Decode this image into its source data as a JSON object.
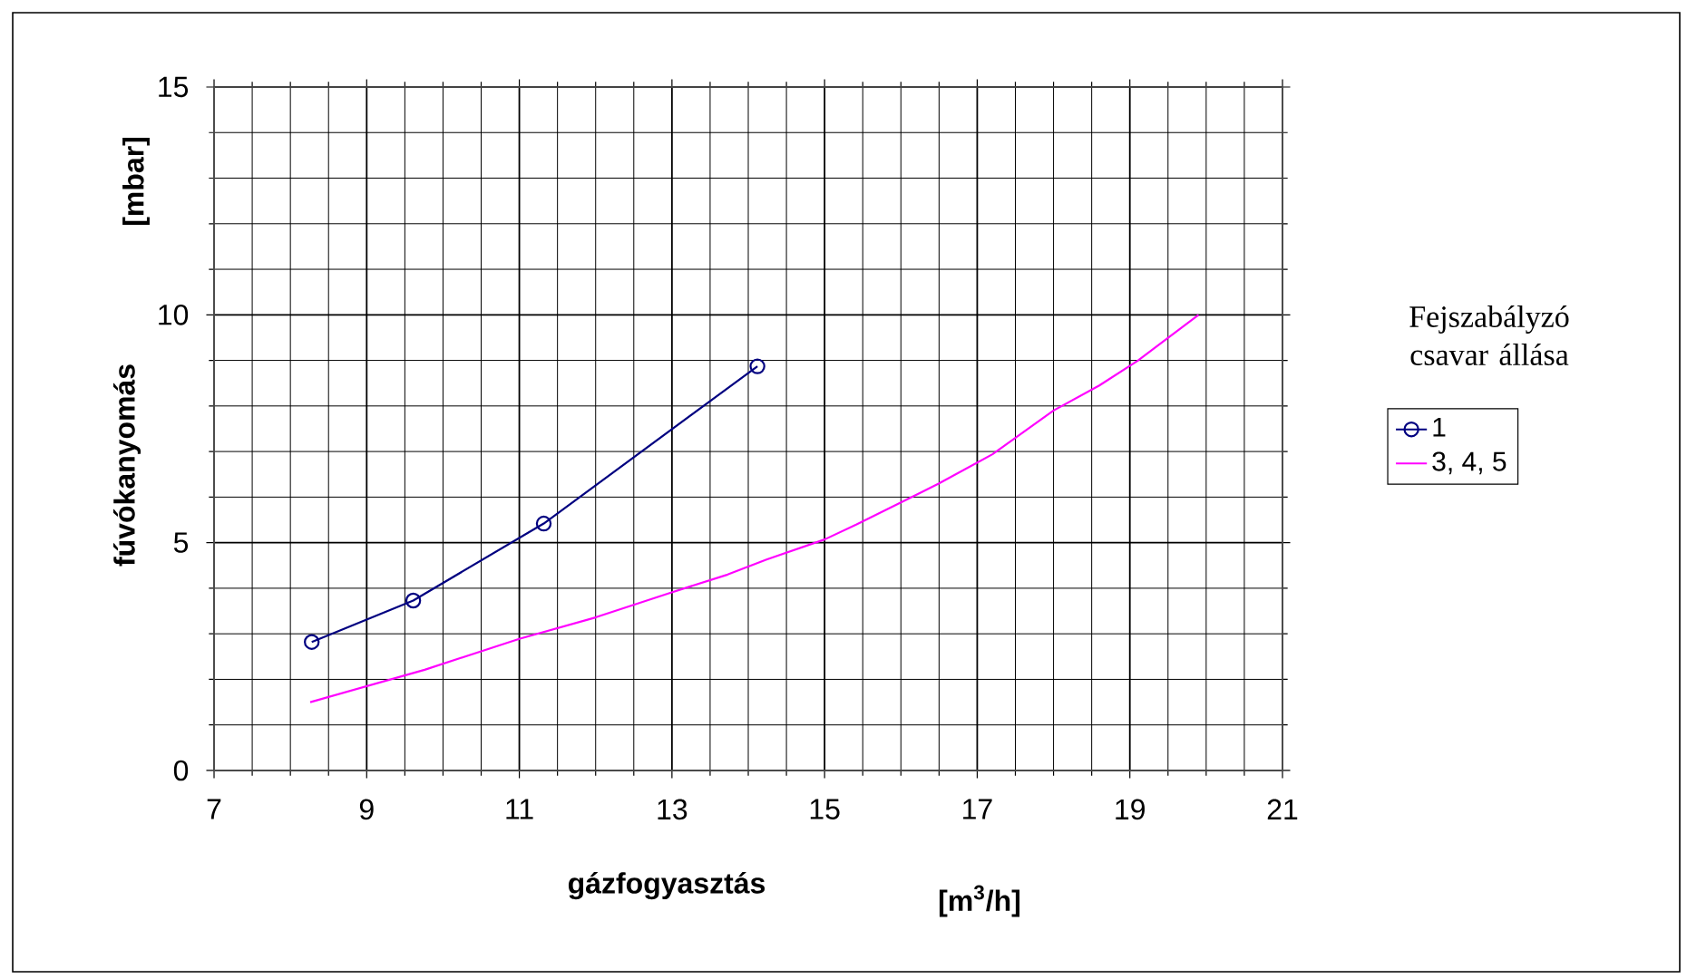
{
  "chart_data": {
    "type": "line",
    "xlabel": "gázfogyasztás",
    "ylabel": "fúvókanyomás",
    "legend_title": "Fejszabályzó csavar állása",
    "annotations": [
      "[mbar]",
      "[m$^{3}$/h]"
    ],
    "xlim": [
      7,
      21
    ],
    "xticks": [
      7,
      9,
      11,
      13,
      15,
      17,
      19,
      21
    ],
    "ylim": [
      0,
      15
    ],
    "yticks": [
      0,
      5,
      10,
      15
    ],
    "grid": true,
    "legend": "right",
    "line_style": "solid",
    "series": [
      {
        "name": "1",
        "color": "#000080",
        "marker": "circle",
        "x": [
          8.28,
          9.61,
          11.32,
          14.12
        ],
        "values": [
          2.82,
          3.73,
          5.42,
          8.87
        ]
      },
      {
        "name": "3, 4, 5",
        "color": "#ff00ff",
        "marker": "none",
        "x": [
          8.26,
          9.76,
          11.0,
          12.0,
          12.96,
          13.73,
          14.24,
          15.0,
          15.42,
          16.5,
          17.2,
          18.0,
          18.6,
          19.1,
          19.9
        ],
        "values": [
          1.5,
          2.21,
          2.89,
          3.36,
          3.89,
          4.3,
          4.63,
          5.07,
          5.4,
          6.3,
          6.94,
          7.9,
          8.45,
          8.99,
          10.0
        ]
      }
    ]
  }
}
